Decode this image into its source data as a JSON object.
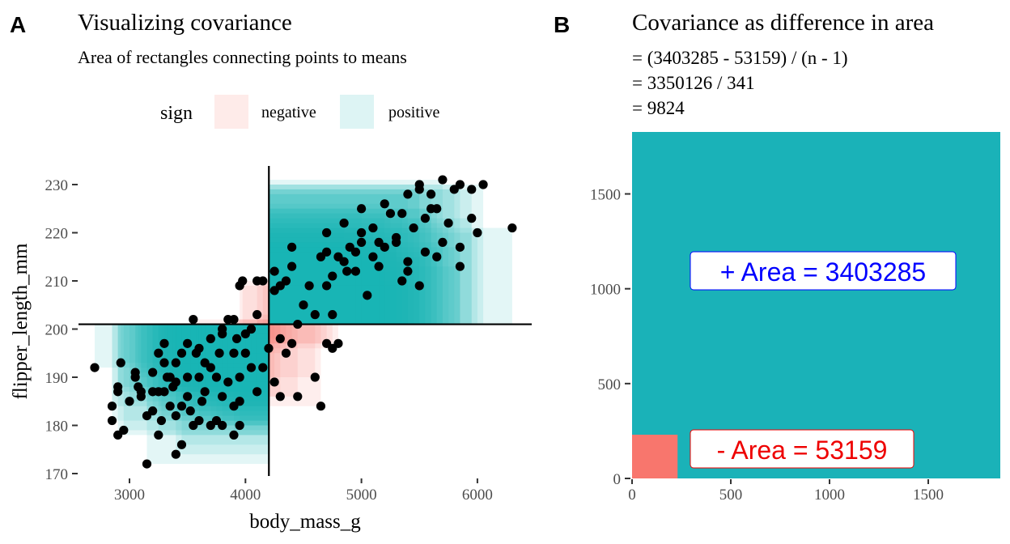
{
  "panel_labels": {
    "a": "A",
    "b": "B"
  },
  "colors": {
    "positive": "#1AB2B8",
    "negative": "#F8766D",
    "plus_label": "#0000FF",
    "minus_label": "#EE0000"
  },
  "chart_data": [
    {
      "type": "scatter",
      "title": "Visualizing covariance",
      "subtitle": "Area of rectangles connecting points to means",
      "xlabel": "body_mass_g",
      "ylabel": "flipper_length_mm",
      "xlim": [
        2550,
        6500
      ],
      "ylim": [
        169,
        234
      ],
      "xticks": [
        "3000",
        "4000",
        "5000",
        "6000"
      ],
      "yticks": [
        "170",
        "180",
        "190",
        "200",
        "210",
        "220",
        "230"
      ],
      "mean": {
        "x": 4202,
        "y": 201
      },
      "legend": {
        "title": "sign",
        "position": "top",
        "entries": [
          "negative",
          "positive"
        ]
      },
      "grid": false,
      "points": [
        [
          2700,
          192
        ],
        [
          2850,
          184
        ],
        [
          2850,
          181
        ],
        [
          2900,
          178
        ],
        [
          2925,
          193
        ],
        [
          2900,
          188
        ],
        [
          2900,
          187
        ],
        [
          2950,
          179
        ],
        [
          3000,
          185
        ],
        [
          3050,
          190
        ],
        [
          3050,
          191
        ],
        [
          3075,
          188
        ],
        [
          3100,
          187
        ],
        [
          3100,
          186
        ],
        [
          3150,
          172
        ],
        [
          3150,
          182
        ],
        [
          3200,
          183
        ],
        [
          3200,
          187
        ],
        [
          3200,
          191
        ],
        [
          3250,
          178
        ],
        [
          3250,
          195
        ],
        [
          3275,
          181
        ],
        [
          3300,
          187
        ],
        [
          3300,
          193
        ],
        [
          3300,
          197
        ],
        [
          3325,
          190
        ],
        [
          3350,
          184
        ],
        [
          3400,
          174
        ],
        [
          3400,
          182
        ],
        [
          3400,
          189
        ],
        [
          3400,
          193
        ],
        [
          3450,
          176
        ],
        [
          3450,
          184
        ],
        [
          3450,
          195
        ],
        [
          3500,
          197
        ],
        [
          3500,
          190
        ],
        [
          3500,
          186
        ],
        [
          3525,
          183
        ],
        [
          3550,
          202
        ],
        [
          3550,
          180
        ],
        [
          3600,
          181
        ],
        [
          3600,
          190
        ],
        [
          3600,
          196
        ],
        [
          3625,
          185
        ],
        [
          3650,
          193
        ],
        [
          3650,
          187
        ],
        [
          3700,
          180
        ],
        [
          3700,
          198
        ],
        [
          3700,
          192
        ],
        [
          3750,
          181
        ],
        [
          3750,
          190
        ],
        [
          3775,
          195
        ],
        [
          3800,
          200
        ],
        [
          3800,
          186
        ],
        [
          3800,
          180
        ],
        [
          3800,
          199
        ],
        [
          3850,
          202
        ],
        [
          3850,
          189
        ],
        [
          3900,
          178
        ],
        [
          3900,
          184
        ],
        [
          3900,
          195
        ],
        [
          3925,
          198
        ],
        [
          3950,
          180
        ],
        [
          3950,
          185
        ],
        [
          3950,
          190
        ],
        [
          3950,
          209
        ],
        [
          3975,
          210
        ],
        [
          4000,
          199
        ],
        [
          4000,
          195
        ],
        [
          4050,
          200
        ],
        [
          4050,
          192
        ],
        [
          4100,
          203
        ],
        [
          4100,
          187
        ],
        [
          4100,
          210
        ],
        [
          4150,
          192
        ],
        [
          4150,
          210
        ],
        [
          4200,
          196
        ],
        [
          4250,
          208
        ],
        [
          4250,
          189
        ],
        [
          4300,
          186
        ],
        [
          4300,
          198
        ],
        [
          4350,
          195
        ],
        [
          4400,
          197
        ],
        [
          4450,
          186
        ],
        [
          4450,
          201
        ],
        [
          4600,
          190
        ],
        [
          4650,
          184
        ],
        [
          4700,
          197
        ],
        [
          4750,
          196
        ],
        [
          4800,
          197
        ],
        [
          3900,
          202
        ],
        [
          3575,
          195
        ],
        [
          3350,
          190
        ],
        [
          3375,
          188
        ],
        [
          3250,
          187
        ],
        [
          4250,
          212
        ],
        [
          4300,
          209
        ],
        [
          4350,
          210
        ],
        [
          4400,
          217
        ],
        [
          4400,
          213
        ],
        [
          4500,
          205
        ],
        [
          4550,
          209
        ],
        [
          4600,
          203
        ],
        [
          4650,
          215
        ],
        [
          4700,
          216
        ],
        [
          4700,
          209
        ],
        [
          4750,
          203
        ],
        [
          4700,
          220
        ],
        [
          4750,
          211
        ],
        [
          4800,
          215
        ],
        [
          4850,
          222
        ],
        [
          4850,
          214
        ],
        [
          4900,
          217
        ],
        [
          4950,
          212
        ],
        [
          5000,
          225
        ],
        [
          5000,
          220
        ],
        [
          5050,
          207
        ],
        [
          5100,
          215
        ],
        [
          5100,
          221
        ],
        [
          5150,
          213
        ],
        [
          5200,
          226
        ],
        [
          5250,
          224
        ],
        [
          5300,
          218
        ],
        [
          5350,
          210
        ],
        [
          5350,
          224
        ],
        [
          5400,
          228
        ],
        [
          5400,
          212
        ],
        [
          5450,
          221
        ],
        [
          5500,
          229
        ],
        [
          5500,
          230
        ],
        [
          5550,
          223
        ],
        [
          5550,
          216
        ],
        [
          5600,
          228
        ],
        [
          5650,
          215
        ],
        [
          5650,
          225
        ],
        [
          5700,
          231
        ],
        [
          5700,
          218
        ],
        [
          5750,
          222
        ],
        [
          5800,
          229
        ],
        [
          5850,
          230
        ],
        [
          5850,
          217
        ],
        [
          5850,
          213
        ],
        [
          5950,
          229
        ],
        [
          5950,
          223
        ],
        [
          6000,
          220
        ],
        [
          6050,
          230
        ],
        [
          6300,
          221
        ],
        [
          5200,
          217
        ],
        [
          5400,
          214
        ],
        [
          5000,
          218
        ],
        [
          4950,
          216
        ],
        [
          5300,
          219
        ],
        [
          5500,
          209
        ],
        [
          4875,
          212
        ],
        [
          5600,
          225
        ],
        [
          5150,
          218
        ]
      ]
    },
    {
      "type": "area-squares",
      "title": "Covariance as difference in area",
      "subtitle_lines": [
        "= (3403285 - 53159) / (n - 1)",
        "= 3350126 / 341",
        "= 9824"
      ],
      "xlim": [
        0,
        1865
      ],
      "ylim": [
        0,
        1845
      ],
      "xticks": [
        "0",
        "500",
        "1000",
        "1500"
      ],
      "yticks": [
        "0",
        "500",
        "1000",
        "1500"
      ],
      "positive_area": 3403285,
      "negative_area": 53159,
      "labels": {
        "positive": "+ Area = 3403285",
        "negative": "- Area = 53159"
      },
      "grid": false
    }
  ]
}
